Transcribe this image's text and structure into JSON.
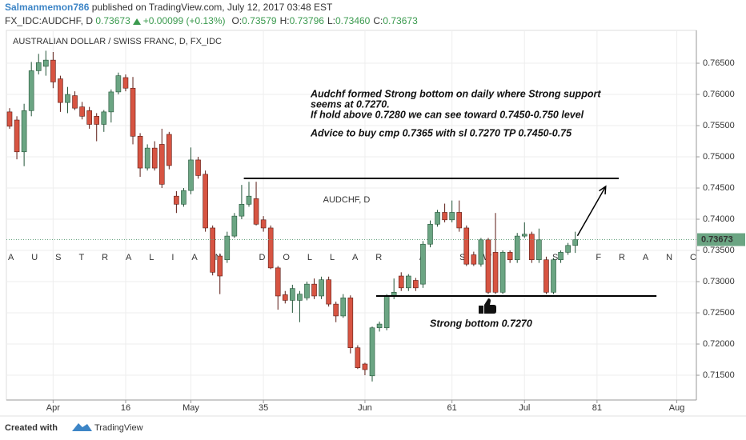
{
  "header": {
    "author": "Salmanmemon786",
    "published": "published on TradingView.com, July 12, 2017 03:48 EST",
    "symbol": "FX_IDC:AUDCHF, D",
    "last": "0.73673",
    "change": "+0.00099 (+0.13%)",
    "ohlc": [
      {
        "label": "O:",
        "value": "0.73579"
      },
      {
        "label": "H:",
        "value": "0.73796"
      },
      {
        "label": "L:",
        "value": "0.73460"
      },
      {
        "label": "C:",
        "value": "0.73673"
      }
    ]
  },
  "chart_data": {
    "type": "candlestick",
    "title": "AUSTRALIAN DOLLAR / SWISS FRANC, D, FX_IDC",
    "watermark": [
      "AUDCHF, D",
      "AUSTRALIAN DOLLAR / SWISS FRANC"
    ],
    "up_color": "#6ba583",
    "down_color": "#d75442",
    "grid": true,
    "open": [
      0.7572,
      0.7559,
      0.7508,
      0.7574,
      0.7638,
      0.7645,
      0.7655,
      0.7625,
      0.7587,
      0.7598,
      0.758,
      0.7574,
      0.7565,
      0.7552,
      0.7572,
      0.7604,
      0.7627,
      0.761,
      0.7533,
      0.7482,
      0.7514,
      0.752,
      0.7536,
      0.7437,
      0.7424,
      0.7446,
      0.7495,
      0.7472,
      0.7386,
      0.7341,
      0.7335,
      0.7373,
      0.7405,
      0.7424,
      0.7433,
      0.7399,
      0.7386,
      0.7322,
      0.7279,
      0.727,
      0.727,
      0.7274,
      0.7296,
      0.7277,
      0.7303,
      0.7264,
      0.7245,
      0.7274,
      0.7194,
      0.7168,
      0.7149,
      0.7226,
      0.7226,
      0.7277,
      0.7309,
      0.729,
      0.7302,
      0.7296,
      0.736,
      0.7392,
      0.7411,
      0.7399,
      0.7411,
      0.7386,
      0.7343,
      0.7328,
      0.7367,
      0.7347,
      0.7283,
      0.7347,
      0.7335,
      0.7373,
      0.7376,
      0.7335,
      0.7335,
      0.7283,
      0.7335,
      0.7347,
      0.7358
    ],
    "high": [
      0.7578,
      0.7565,
      0.7585,
      0.7652,
      0.7665,
      0.767,
      0.7668,
      0.763,
      0.7612,
      0.7605,
      0.7588,
      0.758,
      0.757,
      0.7575,
      0.7608,
      0.7635,
      0.7632,
      0.7628,
      0.7538,
      0.752,
      0.7525,
      0.7545,
      0.754,
      0.7445,
      0.745,
      0.7515,
      0.75,
      0.7478,
      0.739,
      0.7345,
      0.738,
      0.741,
      0.7455,
      0.746,
      0.746,
      0.7405,
      0.739,
      0.7325,
      0.7285,
      0.7295,
      0.7285,
      0.73,
      0.7305,
      0.7308,
      0.7308,
      0.7268,
      0.728,
      0.7278,
      0.7198,
      0.717,
      0.7228,
      0.7236,
      0.728,
      0.7305,
      0.7315,
      0.7312,
      0.7306,
      0.7365,
      0.7398,
      0.7415,
      0.7425,
      0.743,
      0.743,
      0.739,
      0.7348,
      0.737,
      0.737,
      0.741,
      0.735,
      0.735,
      0.7378,
      0.7395,
      0.738,
      0.7385,
      0.734,
      0.7338,
      0.735,
      0.7362,
      0.738
    ],
    "low": [
      0.7545,
      0.7496,
      0.7485,
      0.7565,
      0.7632,
      0.763,
      0.761,
      0.7572,
      0.757,
      0.7575,
      0.756,
      0.7545,
      0.7525,
      0.754,
      0.7555,
      0.76,
      0.7605,
      0.752,
      0.7468,
      0.7478,
      0.7478,
      0.745,
      0.748,
      0.741,
      0.742,
      0.744,
      0.7465,
      0.738,
      0.731,
      0.728,
      0.733,
      0.737,
      0.74,
      0.742,
      0.739,
      0.738,
      0.732,
      0.7255,
      0.7265,
      0.725,
      0.7235,
      0.727,
      0.7272,
      0.7272,
      0.726,
      0.7235,
      0.7242,
      0.7185,
      0.716,
      0.715,
      0.714,
      0.722,
      0.7222,
      0.7272,
      0.7285,
      0.7285,
      0.7285,
      0.729,
      0.7355,
      0.7388,
      0.7395,
      0.7395,
      0.738,
      0.7325,
      0.7325,
      0.7324,
      0.728,
      0.728,
      0.728,
      0.733,
      0.733,
      0.737,
      0.733,
      0.733,
      0.728,
      0.728,
      0.733,
      0.7343,
      0.7346
    ],
    "close": [
      0.7549,
      0.7508,
      0.7574,
      0.7638,
      0.7651,
      0.7655,
      0.762,
      0.7587,
      0.76,
      0.7578,
      0.7565,
      0.7552,
      0.7552,
      0.7572,
      0.7604,
      0.763,
      0.761,
      0.7533,
      0.7482,
      0.7514,
      0.7482,
      0.7456,
      0.7486,
      0.7424,
      0.7446,
      0.7495,
      0.747,
      0.7386,
      0.7315,
      0.7309,
      0.7373,
      0.7405,
      0.7424,
      0.7437,
      0.7392,
      0.7386,
      0.7322,
      0.7277,
      0.727,
      0.7289,
      0.728,
      0.7296,
      0.7277,
      0.7303,
      0.7264,
      0.7245,
      0.7274,
      0.7194,
      0.7162,
      0.7159,
      0.7226,
      0.7232,
      0.7277,
      0.7283,
      0.729,
      0.7309,
      0.729,
      0.736,
      0.7392,
      0.7411,
      0.7399,
      0.7411,
      0.7386,
      0.7328,
      0.7328,
      0.7367,
      0.7283,
      0.7283,
      0.7347,
      0.7335,
      0.7373,
      0.7376,
      0.7335,
      0.7367,
      0.7283,
      0.7335,
      0.7347,
      0.7358,
      0.73673
    ],
    "xlim": [
      -1.3245,
      94.7
    ],
    "ylim": [
      0.71103,
      0.77026
    ],
    "xticks": [
      {
        "value": 6,
        "label": "Apr"
      },
      16,
      {
        "value": 25,
        "label": "May"
      },
      35,
      {
        "value": 49,
        "label": "Jun"
      },
      61,
      {
        "value": 71,
        "label": "Jul"
      },
      81,
      {
        "value": 92,
        "label": "Aug"
      }
    ],
    "yticks": [
      {
        "value": 0.715,
        "label": "0.71500"
      },
      {
        "value": 0.72,
        "label": "0.72000"
      },
      {
        "value": 0.725,
        "label": "0.72500"
      },
      {
        "value": 0.73,
        "label": "0.73000"
      },
      {
        "value": 0.735,
        "label": "0.73500"
      },
      {
        "value": 0.74,
        "label": "0.74000"
      },
      {
        "value": 0.745,
        "label": "0.74500"
      },
      {
        "value": 0.75,
        "label": "0.75000"
      },
      {
        "value": 0.755,
        "label": "0.75500"
      },
      {
        "value": 0.76,
        "label": "0.76000"
      },
      {
        "value": 0.765,
        "label": "0.76500"
      }
    ],
    "last_price": {
      "value": 0.73673,
      "label": "0.73673"
    },
    "lines": [
      {
        "x": [
          32.3,
          84.0
        ],
        "y": [
          0.74654,
          0.74654
        ]
      },
      {
        "x": [
          50.55,
          89.2
        ],
        "y": [
          0.72769,
          0.72769
        ]
      }
    ],
    "arrow": {
      "x": [
        78.3,
        82.2
      ],
      "y": [
        0.73735,
        0.74526
      ]
    },
    "annotations": [
      "Audchf formed Strong bottom on daily where Strong support",
      "seems at 0.7270.",
      "If hold above 0.7280 we can see toward 0.7450-0.750 level",
      "Advice to buy cmp 0.7365 with sl 0.7270 TP 0.7450-0.75",
      "Strong bottom 0.7270"
    ]
  },
  "footer": {
    "created": "Created with",
    "brand": "TradingView"
  }
}
